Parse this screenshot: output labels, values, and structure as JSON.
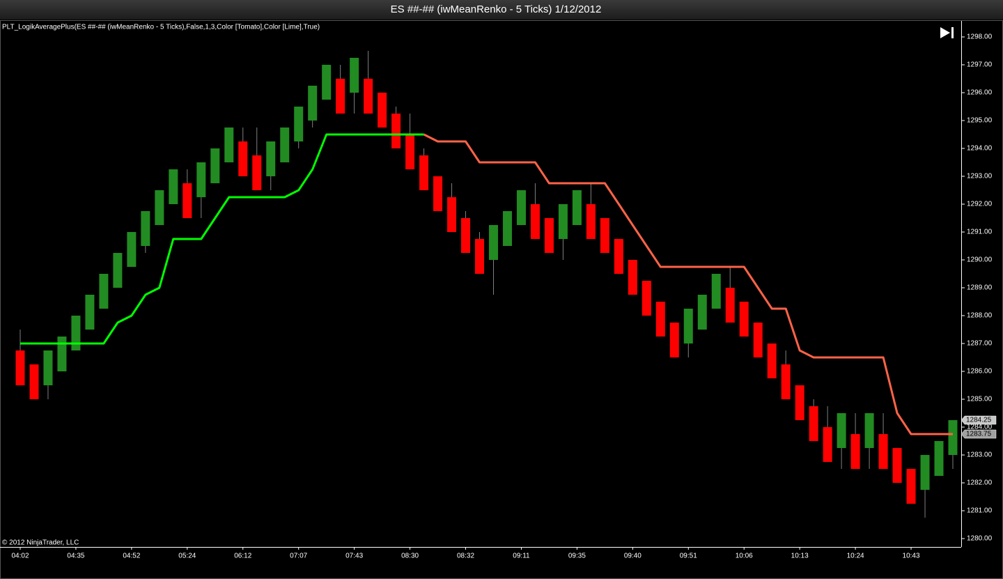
{
  "window_title": "ES ##-## (iwMeanRenko - 5 Ticks)  1/12/2012",
  "indicator_label": "PLT_LogikAveragePlus(ES ##-## (iwMeanRenko - 5 Ticks),False,1,3,Color [Tomato],Color [Lime],True)",
  "copyright": "© 2012 NinjaTrader, LLC",
  "chart_data": {
    "type": "candlestick",
    "categories": [
      "04:02",
      null,
      null,
      null,
      "04:35",
      null,
      null,
      null,
      "04:52",
      null,
      null,
      null,
      "05:24",
      null,
      null,
      null,
      "06:12",
      null,
      null,
      null,
      "07:07",
      null,
      null,
      null,
      "07:43",
      null,
      null,
      null,
      "08:30",
      null,
      null,
      null,
      "08:32",
      null,
      null,
      null,
      "09:11",
      null,
      null,
      null,
      "09:35",
      null,
      null,
      null,
      "09:40",
      null,
      null,
      null,
      "09:51",
      null,
      null,
      null,
      "10:06",
      null,
      null,
      null,
      "10:13",
      null,
      null,
      null,
      "10:24",
      null,
      null,
      null,
      "10:43",
      null,
      null,
      null
    ],
    "open": [
      1286.75,
      1286.25,
      1285.5,
      1286.0,
      1286.75,
      1287.5,
      1288.25,
      1289.0,
      1289.75,
      1290.5,
      1291.25,
      1292.0,
      1292.75,
      1292.25,
      1292.75,
      1293.5,
      1294.25,
      1293.75,
      1293.0,
      1293.5,
      1294.25,
      1295.0,
      1295.75,
      1296.5,
      1296.0,
      1296.5,
      1296.0,
      1295.25,
      1294.5,
      1293.75,
      1293.0,
      1292.25,
      1291.5,
      1290.75,
      1290.0,
      1290.5,
      1291.25,
      1292.0,
      1291.5,
      1290.75,
      1291.25,
      1292.0,
      1291.5,
      1290.75,
      1290.0,
      1289.25,
      1288.5,
      1287.75,
      1287.0,
      1287.5,
      1288.25,
      1289.0,
      1288.5,
      1287.75,
      1287.0,
      1286.25,
      1285.5,
      1284.75,
      1284.0,
      1283.25,
      1283.75,
      1283.25,
      1283.75,
      1283.25,
      1282.5,
      1281.75,
      1282.25,
      1283.0
    ],
    "high": [
      1287.5,
      1286.25,
      1286.75,
      1287.25,
      1288.0,
      1288.75,
      1289.5,
      1290.25,
      1291.0,
      1291.75,
      1292.5,
      1293.25,
      1293.25,
      1293.5,
      1294.0,
      1294.75,
      1294.75,
      1294.75,
      1294.25,
      1294.75,
      1295.5,
      1296.25,
      1297.0,
      1297.0,
      1297.25,
      1297.5,
      1296.0,
      1295.5,
      1295.25,
      1294.0,
      1293.0,
      1292.75,
      1291.75,
      1291.0,
      1291.25,
      1291.75,
      1292.5,
      1292.75,
      1291.5,
      1292.0,
      1292.5,
      1292.75,
      1291.5,
      1290.75,
      1290.0,
      1289.25,
      1288.5,
      1287.75,
      1288.25,
      1288.75,
      1289.5,
      1289.75,
      1288.5,
      1287.75,
      1287.0,
      1286.75,
      1285.5,
      1285.0,
      1284.75,
      1284.5,
      1284.5,
      1284.5,
      1284.5,
      1283.25,
      1282.5,
      1283.0,
      1283.5,
      1284.25
    ],
    "low": [
      1285.5,
      1285.0,
      1285.0,
      1286.0,
      1286.75,
      1287.5,
      1288.25,
      1289.0,
      1289.75,
      1290.25,
      1291.25,
      1292.0,
      1291.5,
      1291.5,
      1292.75,
      1293.5,
      1293.0,
      1292.5,
      1292.5,
      1293.5,
      1294.0,
      1294.75,
      1295.75,
      1295.25,
      1295.25,
      1295.25,
      1294.75,
      1294.0,
      1293.25,
      1292.5,
      1291.75,
      1291.0,
      1290.25,
      1289.5,
      1288.75,
      1290.5,
      1291.25,
      1290.75,
      1290.25,
      1290.0,
      1291.25,
      1290.75,
      1290.25,
      1289.5,
      1288.75,
      1288.0,
      1287.25,
      1286.5,
      1286.5,
      1287.5,
      1288.25,
      1287.75,
      1287.25,
      1286.5,
      1285.75,
      1285.0,
      1284.25,
      1283.5,
      1282.75,
      1282.5,
      1282.5,
      1282.5,
      1282.5,
      1282.0,
      1281.25,
      1280.75,
      1282.25,
      1282.5
    ],
    "close": [
      1285.5,
      1285.0,
      1286.75,
      1287.25,
      1288.0,
      1288.75,
      1289.5,
      1290.25,
      1291.0,
      1291.75,
      1292.5,
      1293.25,
      1291.5,
      1293.5,
      1294.0,
      1294.75,
      1293.0,
      1292.5,
      1294.25,
      1294.75,
      1295.5,
      1296.25,
      1297.0,
      1295.25,
      1297.25,
      1295.25,
      1294.75,
      1294.0,
      1293.25,
      1292.5,
      1291.75,
      1291.0,
      1290.25,
      1289.5,
      1291.25,
      1291.75,
      1292.5,
      1290.75,
      1290.25,
      1292.0,
      1292.5,
      1290.75,
      1290.25,
      1289.5,
      1288.75,
      1288.0,
      1287.25,
      1286.5,
      1288.25,
      1288.75,
      1289.5,
      1287.75,
      1287.25,
      1286.5,
      1285.75,
      1285.0,
      1284.25,
      1283.5,
      1282.75,
      1284.5,
      1282.5,
      1284.5,
      1282.5,
      1282.0,
      1281.25,
      1283.0,
      1283.5,
      1284.25
    ],
    "up_color": "#228b22",
    "down_color": "#ff0000",
    "wick_color": "#808080",
    "series": [
      {
        "color": "#00ff00",
        "values": [
          1287,
          1287,
          1287,
          1287,
          1287,
          1287,
          1287,
          1287.75,
          1288,
          1288.75,
          1289,
          1290.75,
          1290.75,
          1290.75,
          1291.5,
          1292.25,
          1292.25,
          1292.25,
          1292.25,
          1292.25,
          1292.5,
          1293.25,
          1294.5,
          1294.5,
          1294.5,
          1294.5,
          1294.5,
          1294.5,
          1294.5,
          1294.5,
          null,
          null,
          null,
          null,
          null,
          null,
          null,
          null,
          null,
          null,
          null,
          null,
          null,
          null,
          null,
          null,
          null,
          null,
          null,
          null,
          null,
          null,
          null,
          null,
          null,
          null,
          null,
          null,
          null,
          null,
          null,
          null,
          null,
          null,
          null,
          null,
          null,
          null
        ]
      },
      {
        "color": "#ff6347",
        "values": [
          null,
          null,
          null,
          null,
          null,
          null,
          null,
          null,
          null,
          null,
          null,
          null,
          null,
          null,
          null,
          null,
          null,
          null,
          null,
          null,
          null,
          null,
          null,
          null,
          null,
          null,
          null,
          null,
          null,
          1294.5,
          1294.25,
          1294.25,
          1294.25,
          1293.5,
          1293.5,
          1293.5,
          1293.5,
          1293.5,
          1292.75,
          1292.75,
          1292.75,
          1292.75,
          1292.75,
          1292.0,
          1291.25,
          1290.5,
          1289.75,
          1289.75,
          1289.75,
          1289.75,
          1289.75,
          1289.75,
          1289.75,
          1289.0,
          1288.25,
          1288.25,
          1286.75,
          1286.5,
          1286.5,
          1286.5,
          1286.5,
          1286.5,
          1286.5,
          1284.5,
          1283.75,
          1283.75,
          1283.75,
          1283.75
        ]
      }
    ],
    "price_markers": [
      {
        "value": 1284.25,
        "label": "1284.25",
        "color": "#c8c8c8"
      },
      {
        "value": 1283.75,
        "label": "1283.75",
        "color": "#a0a0a0"
      }
    ],
    "ylim": [
      1279.7,
      1298.575
    ],
    "yticks": [
      {
        "value": 1280,
        "label": "1280.00"
      },
      {
        "value": 1281,
        "label": "1281.00"
      },
      {
        "value": 1282,
        "label": "1282.00"
      },
      {
        "value": 1283,
        "label": "1283.00"
      },
      {
        "value": 1284,
        "label": "1284.00"
      },
      {
        "value": 1285,
        "label": "1285.00"
      },
      {
        "value": 1286,
        "label": "1286.00"
      },
      {
        "value": 1287,
        "label": "1287.00"
      },
      {
        "value": 1288,
        "label": "1288.00"
      },
      {
        "value": 1289,
        "label": "1289.00"
      },
      {
        "value": 1290,
        "label": "1290.00"
      },
      {
        "value": 1291,
        "label": "1291.00"
      },
      {
        "value": 1292,
        "label": "1292.00"
      },
      {
        "value": 1293,
        "label": "1293.00"
      },
      {
        "value": 1294,
        "label": "1294.00"
      },
      {
        "value": 1295,
        "label": "1295.00"
      },
      {
        "value": 1296,
        "label": "1296.00"
      },
      {
        "value": 1297,
        "label": "1297.00"
      },
      {
        "value": 1298,
        "label": "1298.00"
      }
    ]
  }
}
